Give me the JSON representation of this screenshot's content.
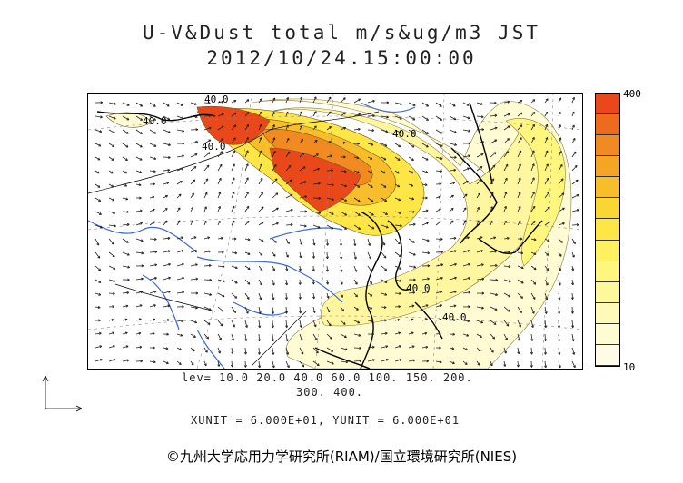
{
  "title": {
    "line1": "U-V&Dust total m/s&ug/m3 JST",
    "line2": "2012/10/24.15:00:00"
  },
  "colorbar": {
    "max_label": "400",
    "min_label": "10",
    "colors": [
      "#e8481a",
      "#ee6a1c",
      "#f28a22",
      "#f5a526",
      "#f8bd2a",
      "#fad634",
      "#fde646",
      "#fff060",
      "#fff67e",
      "#fff89a",
      "#fffab8",
      "#fffbd2",
      "#fffbe6"
    ]
  },
  "legend": {
    "levels_line1": "lev= 10.0 20.0 40.0 60.0 100. 150. 200.",
    "levels_line2": "300. 400.",
    "unit_line": "XUNIT = 6.000E+01, YUNIT = 6.000E+01"
  },
  "map": {
    "contour_labels": [
      "40.0",
      "40.0",
      "40.0",
      "40.0",
      "40.0",
      "40.0"
    ]
  },
  "copyright": "©九州大学応用力学研究所(RIAM)/国立環境研究所(NIES)"
}
